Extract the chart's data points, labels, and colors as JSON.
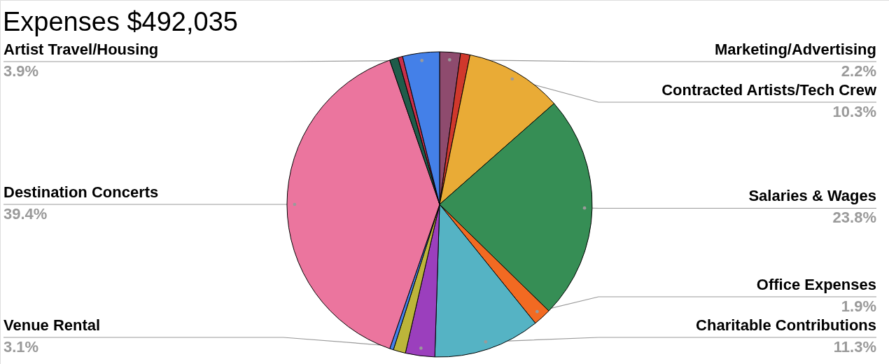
{
  "chart_data": {
    "type": "pie",
    "title": "Expenses $492,035",
    "categories": [
      "Marketing/Advertising",
      null,
      "Contracted Artists/Tech Crew",
      "Salaries & Wages",
      "Office Expenses",
      "Charitable Contributions",
      "Venue Rental",
      null,
      null,
      "Destination Concerts",
      null,
      null,
      "Artist Travel/Housing"
    ],
    "values": [
      2.2,
      1.0,
      10.3,
      23.8,
      1.9,
      11.3,
      3.1,
      1.3,
      0.4,
      39.4,
      0.9,
      0.5,
      3.9
    ],
    "colors": [
      "#8e4b6e",
      "#d0382c",
      "#e9ab36",
      "#368e55",
      "#f26a22",
      "#55b3c4",
      "#9b3fbd",
      "#bcb53a",
      "#4480e8",
      "#eb759e",
      "#1f5c4a",
      "#c8304a",
      "#4480e8"
    ],
    "value_labels": [
      "2.2%",
      null,
      "10.3%",
      "23.8%",
      "1.9%",
      "11.3%",
      "3.1%",
      null,
      null,
      "39.4%",
      null,
      null,
      "3.9%"
    ]
  }
}
